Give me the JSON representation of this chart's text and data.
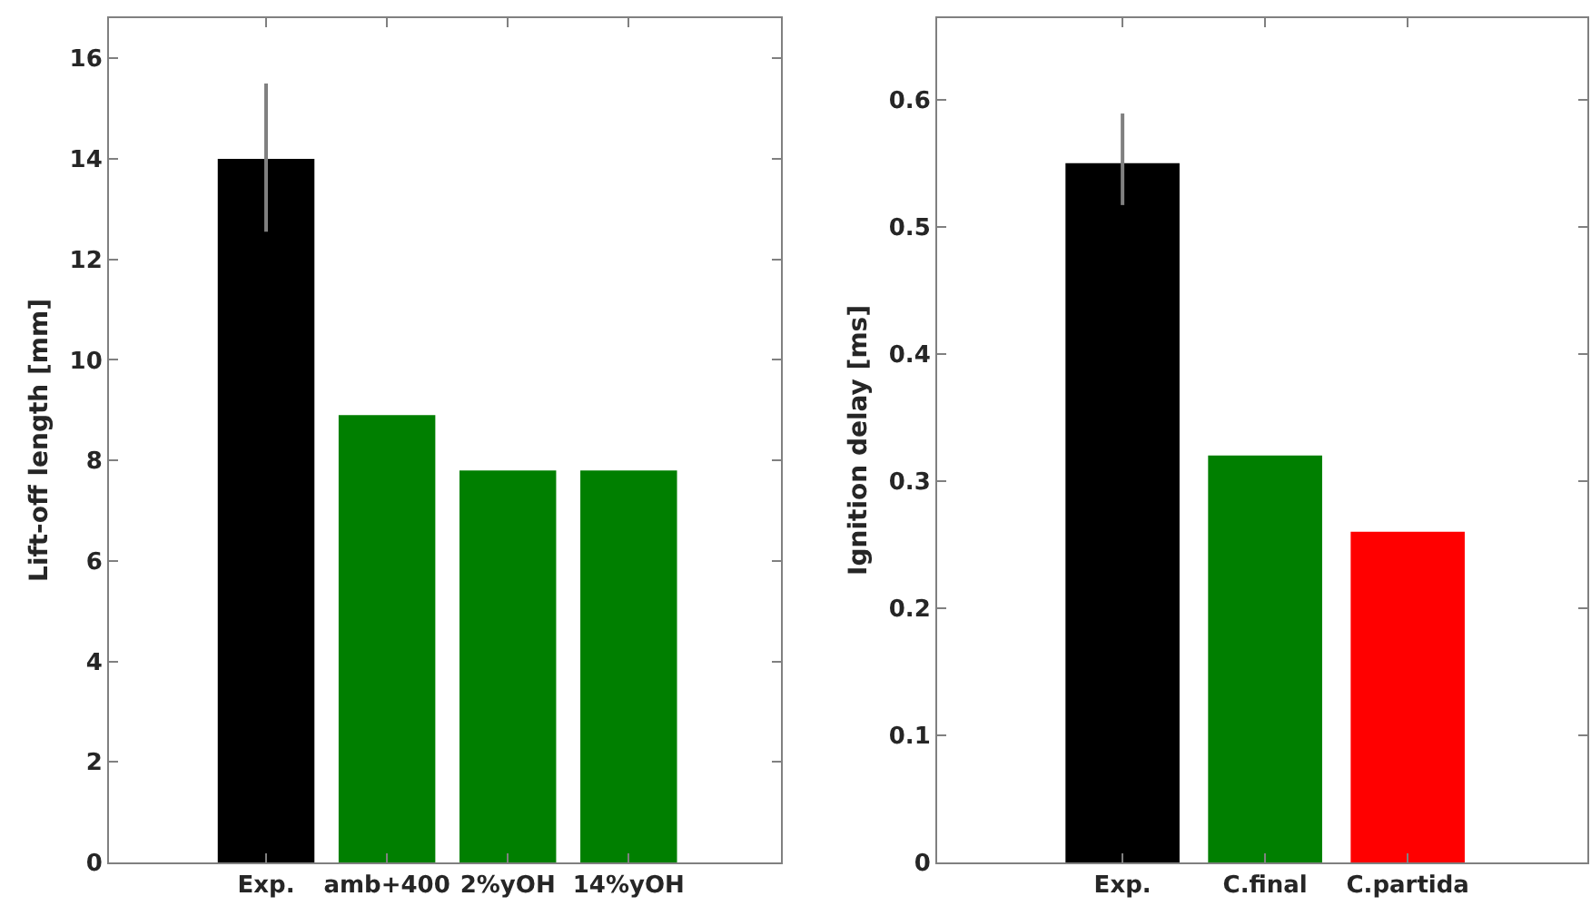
{
  "chart_data": [
    {
      "type": "bar",
      "ylabel": "Lift-off length [mm]",
      "categories": [
        "Exp.",
        "amb+400",
        "2%yOH",
        "14%yOH"
      ],
      "values": [
        14,
        8.9,
        7.8,
        7.8
      ],
      "colors": [
        "#000000",
        "#007f00",
        "#007f00",
        "#007f00"
      ],
      "errors": [
        [
          12.55,
          15.5
        ],
        null,
        null,
        null
      ],
      "ylim": [
        0,
        16.8
      ],
      "yticks": [
        0,
        2,
        4,
        6,
        8,
        10,
        12,
        14,
        16
      ],
      "grid": false
    },
    {
      "type": "bar",
      "ylabel": "Ignition delay [ms]",
      "categories": [
        "Exp.",
        "C.final",
        "C.partida"
      ],
      "values": [
        0.55,
        0.32,
        0.26
      ],
      "colors": [
        "#000000",
        "#007f00",
        "#ff0000"
      ],
      "errors": [
        [
          0.517,
          0.589
        ],
        null,
        null
      ],
      "ylim": [
        0,
        0.664
      ],
      "yticks": [
        0,
        0.1,
        0.2,
        0.3,
        0.4,
        0.5,
        0.6
      ],
      "grid": false
    }
  ]
}
